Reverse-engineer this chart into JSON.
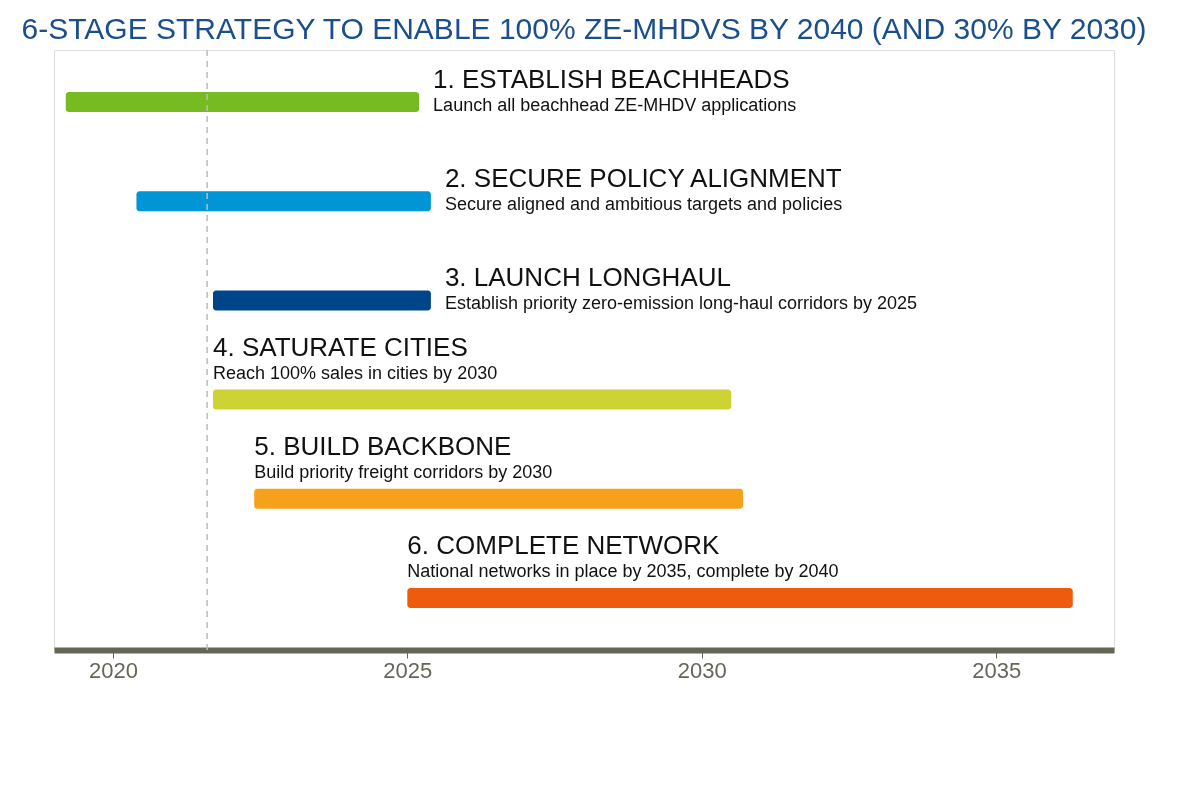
{
  "chart_data": {
    "type": "bar",
    "orientation": "horizontal",
    "title": "6-STAGE STRATEGY TO ENABLE 100% ZE-MHDVS BY 2040 (AND 30% BY 2030)",
    "categories": [
      "1. ESTABLISH BEACHHEADS",
      "2. SECURE POLICY ALIGNMENT",
      "3. LAUNCH LONGHAUL",
      "4. SATURATE CITIES",
      "5. BUILD BACKBONE",
      "6. COMPLETE NETWORK"
    ],
    "base": [
      2019.2,
      2020.4,
      2021.7,
      2021.7,
      2022.4,
      2025.0
    ],
    "values": [
      6.0,
      5.0,
      3.7,
      8.8,
      8.3,
      11.3
    ],
    "colors": [
      "#77bb22",
      "#0096d6",
      "#004489",
      "#cdd334",
      "#f7a11a",
      "#ee5a0e"
    ],
    "xlim": [
      2019,
      2037
    ],
    "xticks": [
      2020,
      2025,
      2030,
      2035
    ],
    "tick_labels": "x",
    "grid": false,
    "ref_lines": [
      {
        "axis": "x",
        "value": 2021.6,
        "color": "#bbbbbb",
        "line_style": "dashed"
      }
    ],
    "annotations": [
      "Launch all beachhead ZE-MHDV applications",
      "Secure aligned and ambitious targets and policies",
      "Establish priority zero-emission long-haul corridors by 2025",
      "Reach 100% sales in cities by 2030",
      "Build priority freight corridors by 2030",
      "National networks in place by 2035, complete by 2040"
    ]
  }
}
